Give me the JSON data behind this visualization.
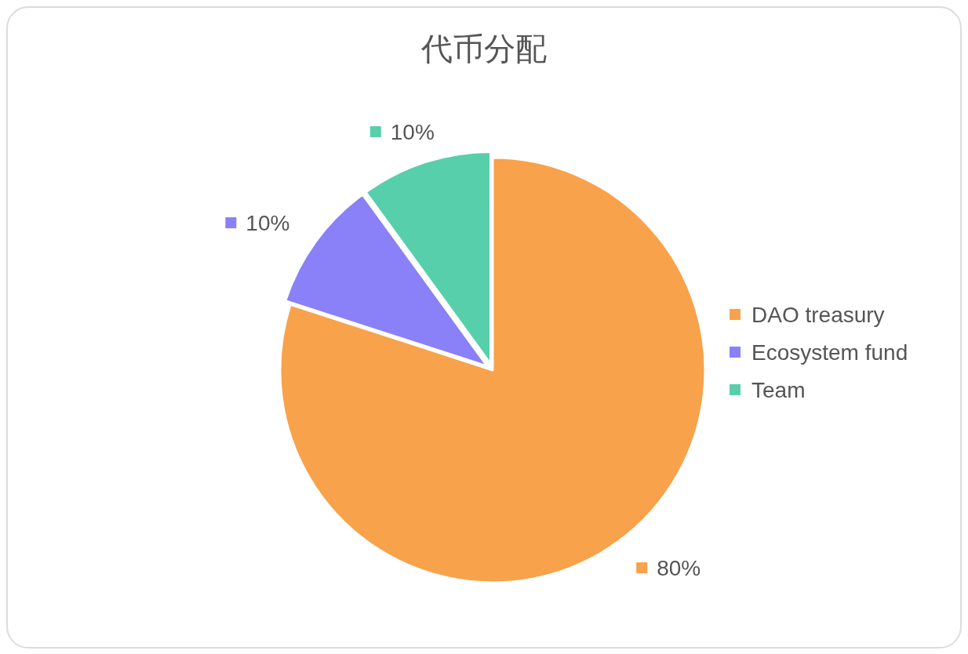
{
  "chart_data": {
    "type": "pie",
    "title": "代币分配",
    "categories": [
      "DAO treasury",
      "Ecosystem fund",
      "Team"
    ],
    "values": [
      80,
      10,
      10
    ],
    "colors": [
      "#f8a24c",
      "#8a80f8",
      "#58cfab"
    ],
    "value_labels": [
      "80%",
      "10%",
      "10%"
    ],
    "legend": "right"
  }
}
